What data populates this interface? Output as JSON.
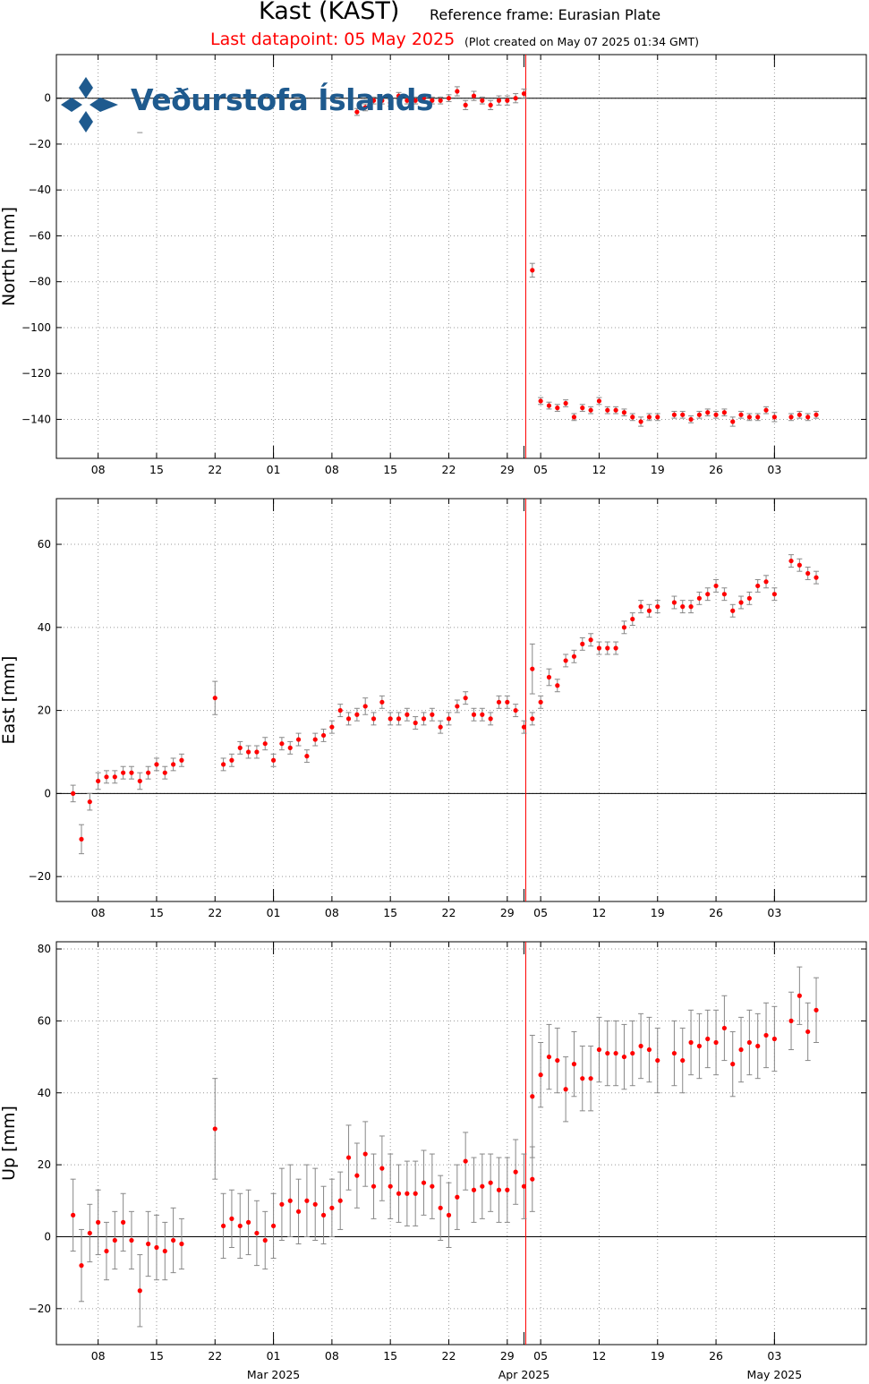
{
  "header": {
    "station": "Kast (KAST)",
    "reference_frame": "Reference frame: Eurasian Plate",
    "last_datapoint": "Last datapoint: 05 May 2025",
    "plot_created": "(Plot created on May 07 2025 01:34 GMT)"
  },
  "logo": {
    "text": "Veðurstofa Íslands",
    "color": "#1e5a8e"
  },
  "colors": {
    "points": "#ff0000",
    "errorbars": "#888888",
    "event_line": "#ff0000",
    "zero_line": "#000000",
    "grid": "#999999"
  },
  "chart_data": [
    {
      "type": "scatter",
      "ylabel": "North [mm]",
      "ylim": [
        -157,
        19
      ],
      "yticks": [
        0,
        -20,
        -40,
        -60,
        -80,
        -100,
        -120,
        -140
      ],
      "xlim": [
        1,
        98
      ],
      "xticks": [
        {
          "day": 6,
          "label": "08"
        },
        {
          "day": 13,
          "label": "15"
        },
        {
          "day": 20,
          "label": "22"
        },
        {
          "day": 27,
          "label": "01"
        },
        {
          "day": 34,
          "label": "08"
        },
        {
          "day": 41,
          "label": "15"
        },
        {
          "day": 48,
          "label": "22"
        },
        {
          "day": 55,
          "label": "29"
        },
        {
          "day": 59,
          "label": "05"
        },
        {
          "day": 66,
          "label": "12"
        },
        {
          "day": 73,
          "label": "19"
        },
        {
          "day": 80,
          "label": "26"
        },
        {
          "day": 87,
          "label": "03"
        }
      ],
      "month_labels": [],
      "event_day": 57,
      "grid": true,
      "points": [
        [
          11,
          -15,
          0
        ],
        [
          37,
          -6,
          1.5
        ],
        [
          38,
          -4,
          1.5
        ],
        [
          39,
          -1,
          1.5
        ],
        [
          40,
          -1,
          1.5
        ],
        [
          41,
          -2,
          1.5
        ],
        [
          42,
          1,
          1.5
        ],
        [
          43,
          -1,
          1.5
        ],
        [
          44,
          -1,
          1.5
        ],
        [
          45,
          0,
          1.5
        ],
        [
          46,
          -1,
          1.5
        ],
        [
          47,
          -1,
          1.5
        ],
        [
          48,
          0,
          1.5
        ],
        [
          49,
          3,
          2
        ],
        [
          50,
          -3,
          2
        ],
        [
          51,
          1,
          2
        ],
        [
          52,
          -1,
          1.5
        ],
        [
          53,
          -3,
          2
        ],
        [
          54,
          -1,
          2
        ],
        [
          55,
          -1,
          2
        ],
        [
          56,
          0,
          2
        ],
        [
          57,
          2,
          2
        ],
        [
          58,
          -75,
          3
        ],
        [
          59,
          -132,
          1.5
        ],
        [
          60,
          -134,
          1.5
        ],
        [
          61,
          -135,
          1.5
        ],
        [
          62,
          -133,
          1.5
        ],
        [
          63,
          -139,
          1.5
        ],
        [
          64,
          -135,
          1.5
        ],
        [
          65,
          -136,
          1.5
        ],
        [
          66,
          -132,
          1.5
        ],
        [
          67,
          -136,
          1.5
        ],
        [
          68,
          -136,
          1.5
        ],
        [
          69,
          -137,
          1.5
        ],
        [
          70,
          -139,
          1.5
        ],
        [
          71,
          -141,
          2
        ],
        [
          72,
          -139,
          1.5
        ],
        [
          73,
          -139,
          1.5
        ],
        [
          75,
          -138,
          1.5
        ],
        [
          76,
          -138,
          1.5
        ],
        [
          77,
          -140,
          1.5
        ],
        [
          78,
          -138,
          1.5
        ],
        [
          79,
          -137,
          1.5
        ],
        [
          80,
          -138,
          1.5
        ],
        [
          81,
          -137,
          1.5
        ],
        [
          82,
          -141,
          2
        ],
        [
          83,
          -138,
          1.5
        ],
        [
          84,
          -139,
          1.5
        ],
        [
          85,
          -139,
          1.5
        ],
        [
          86,
          -136,
          1.5
        ],
        [
          87,
          -139,
          2
        ],
        [
          89,
          -139,
          1.5
        ],
        [
          90,
          -138,
          1.5
        ],
        [
          91,
          -139,
          1.5
        ],
        [
          92,
          -138,
          1.5
        ]
      ]
    },
    {
      "type": "scatter",
      "ylabel": "East [mm]",
      "ylim": [
        -26,
        71
      ],
      "yticks": [
        60,
        40,
        20,
        0,
        -20
      ],
      "xlim": [
        1,
        98
      ],
      "xticks": [
        {
          "day": 6,
          "label": "08"
        },
        {
          "day": 13,
          "label": "15"
        },
        {
          "day": 20,
          "label": "22"
        },
        {
          "day": 27,
          "label": "01"
        },
        {
          "day": 34,
          "label": "08"
        },
        {
          "day": 41,
          "label": "15"
        },
        {
          "day": 48,
          "label": "22"
        },
        {
          "day": 55,
          "label": "29"
        },
        {
          "day": 59,
          "label": "05"
        },
        {
          "day": 66,
          "label": "12"
        },
        {
          "day": 73,
          "label": "19"
        },
        {
          "day": 80,
          "label": "26"
        },
        {
          "day": 87,
          "label": "03"
        }
      ],
      "month_labels": [],
      "event_day": 57,
      "grid": true,
      "points": [
        [
          3,
          0,
          2
        ],
        [
          4,
          -11,
          3.5
        ],
        [
          5,
          -2,
          2
        ],
        [
          6,
          3,
          2
        ],
        [
          7,
          4,
          1.5
        ],
        [
          8,
          4,
          1.5
        ],
        [
          9,
          5,
          1.5
        ],
        [
          10,
          5,
          1.5
        ],
        [
          11,
          3,
          2
        ],
        [
          12,
          5,
          1.5
        ],
        [
          13,
          7,
          1.5
        ],
        [
          14,
          5,
          1.5
        ],
        [
          15,
          7,
          1.5
        ],
        [
          16,
          8,
          1.5
        ],
        [
          20,
          23,
          4
        ],
        [
          21,
          7,
          1.5
        ],
        [
          22,
          8,
          1.5
        ],
        [
          23,
          11,
          1.5
        ],
        [
          24,
          10,
          1.5
        ],
        [
          25,
          10,
          1.5
        ],
        [
          26,
          12,
          1.5
        ],
        [
          27,
          8,
          1.5
        ],
        [
          28,
          12,
          1.5
        ],
        [
          29,
          11,
          1.5
        ],
        [
          30,
          13,
          1.5
        ],
        [
          31,
          9,
          1.5
        ],
        [
          32,
          13,
          1.5
        ],
        [
          33,
          14,
          1.5
        ],
        [
          34,
          16,
          1.5
        ],
        [
          35,
          20,
          1.5
        ],
        [
          36,
          18,
          1.5
        ],
        [
          37,
          19,
          1.5
        ],
        [
          38,
          21,
          2
        ],
        [
          39,
          18,
          1.5
        ],
        [
          40,
          22,
          1.5
        ],
        [
          41,
          18,
          1.5
        ],
        [
          42,
          18,
          1.5
        ],
        [
          43,
          19,
          1.5
        ],
        [
          44,
          17,
          1.5
        ],
        [
          45,
          18,
          1.5
        ],
        [
          46,
          19,
          1.5
        ],
        [
          47,
          16,
          1.5
        ],
        [
          48,
          18,
          1.5
        ],
        [
          49,
          21,
          1.5
        ],
        [
          50,
          23,
          1.5
        ],
        [
          51,
          19,
          1.5
        ],
        [
          52,
          19,
          1.5
        ],
        [
          53,
          18,
          1.5
        ],
        [
          54,
          22,
          1.5
        ],
        [
          55,
          22,
          1.5
        ],
        [
          56,
          20,
          1.5
        ],
        [
          57,
          16,
          1.5
        ],
        [
          58,
          18,
          1.5
        ],
        [
          58,
          30,
          6
        ],
        [
          59,
          22,
          1.5
        ],
        [
          60,
          28,
          2
        ],
        [
          61,
          26,
          1.5
        ],
        [
          62,
          32,
          1.5
        ],
        [
          63,
          33,
          1.5
        ],
        [
          64,
          36,
          1.5
        ],
        [
          65,
          37,
          1.5
        ],
        [
          66,
          35,
          1.5
        ],
        [
          67,
          35,
          1.5
        ],
        [
          68,
          35,
          1.5
        ],
        [
          69,
          40,
          1.5
        ],
        [
          70,
          42,
          1.5
        ],
        [
          71,
          45,
          1.5
        ],
        [
          72,
          44,
          1.5
        ],
        [
          73,
          45,
          1.5
        ],
        [
          75,
          46,
          1.5
        ],
        [
          76,
          45,
          1.5
        ],
        [
          77,
          45,
          1.5
        ],
        [
          78,
          47,
          1.5
        ],
        [
          79,
          48,
          1.5
        ],
        [
          80,
          50,
          1.5
        ],
        [
          81,
          48,
          1.5
        ],
        [
          82,
          44,
          1.5
        ],
        [
          83,
          46,
          1.5
        ],
        [
          84,
          47,
          1.5
        ],
        [
          85,
          50,
          1.5
        ],
        [
          86,
          51,
          1.5
        ],
        [
          87,
          48,
          1.5
        ],
        [
          89,
          56,
          1.5
        ],
        [
          90,
          55,
          1.5
        ],
        [
          91,
          53,
          1.5
        ],
        [
          92,
          52,
          1.5
        ]
      ]
    },
    {
      "type": "scatter",
      "ylabel": "Up [mm]",
      "ylim": [
        -30,
        82
      ],
      "yticks": [
        80,
        60,
        40,
        20,
        0,
        -20
      ],
      "xlim": [
        1,
        98
      ],
      "xticks": [
        {
          "day": 6,
          "label": "08"
        },
        {
          "day": 13,
          "label": "15"
        },
        {
          "day": 20,
          "label": "22"
        },
        {
          "day": 27,
          "label": "01"
        },
        {
          "day": 34,
          "label": "08"
        },
        {
          "day": 41,
          "label": "15"
        },
        {
          "day": 48,
          "label": "22"
        },
        {
          "day": 55,
          "label": "29"
        },
        {
          "day": 59,
          "label": "05"
        },
        {
          "day": 66,
          "label": "12"
        },
        {
          "day": 73,
          "label": "19"
        },
        {
          "day": 80,
          "label": "26"
        },
        {
          "day": 87,
          "label": "03"
        }
      ],
      "month_labels": [
        {
          "day": 27,
          "label": "Mar 2025"
        },
        {
          "day": 57,
          "label": "Apr 2025"
        },
        {
          "day": 87,
          "label": "May 2025"
        }
      ],
      "event_day": 57,
      "grid": true,
      "points": [
        [
          3,
          6,
          10
        ],
        [
          4,
          -8,
          10
        ],
        [
          5,
          1,
          8
        ],
        [
          6,
          4,
          9
        ],
        [
          7,
          -4,
          8
        ],
        [
          8,
          -1,
          8
        ],
        [
          9,
          4,
          8
        ],
        [
          10,
          -1,
          8
        ],
        [
          11,
          -15,
          10
        ],
        [
          12,
          -2,
          9
        ],
        [
          13,
          -3,
          9
        ],
        [
          14,
          -4,
          8
        ],
        [
          15,
          -1,
          9
        ],
        [
          16,
          -2,
          7
        ],
        [
          20,
          30,
          14
        ],
        [
          21,
          3,
          9
        ],
        [
          22,
          5,
          8
        ],
        [
          23,
          3,
          9
        ],
        [
          24,
          4,
          9
        ],
        [
          25,
          1,
          9
        ],
        [
          26,
          -1,
          8
        ],
        [
          27,
          3,
          9
        ],
        [
          28,
          9,
          10
        ],
        [
          29,
          10,
          10
        ],
        [
          30,
          7,
          9
        ],
        [
          31,
          10,
          10
        ],
        [
          32,
          9,
          10
        ],
        [
          33,
          6,
          8
        ],
        [
          34,
          8,
          8
        ],
        [
          35,
          10,
          8
        ],
        [
          36,
          22,
          9
        ],
        [
          37,
          17,
          9
        ],
        [
          38,
          23,
          9
        ],
        [
          39,
          14,
          9
        ],
        [
          40,
          19,
          9
        ],
        [
          41,
          14,
          9
        ],
        [
          42,
          12,
          8
        ],
        [
          43,
          12,
          9
        ],
        [
          44,
          12,
          9
        ],
        [
          45,
          15,
          9
        ],
        [
          46,
          14,
          9
        ],
        [
          47,
          8,
          9
        ],
        [
          48,
          6,
          9
        ],
        [
          49,
          11,
          9
        ],
        [
          50,
          21,
          8
        ],
        [
          51,
          13,
          9
        ],
        [
          52,
          14,
          9
        ],
        [
          53,
          15,
          8
        ],
        [
          54,
          13,
          9
        ],
        [
          55,
          13,
          9
        ],
        [
          56,
          18,
          9
        ],
        [
          57,
          14,
          9
        ],
        [
          58,
          16,
          9
        ],
        [
          58,
          39,
          17
        ],
        [
          59,
          45,
          9
        ],
        [
          60,
          50,
          9
        ],
        [
          61,
          49,
          9
        ],
        [
          62,
          41,
          9
        ],
        [
          63,
          48,
          9
        ],
        [
          64,
          44,
          9
        ],
        [
          65,
          44,
          9
        ],
        [
          66,
          52,
          9
        ],
        [
          67,
          51,
          9
        ],
        [
          68,
          51,
          9
        ],
        [
          69,
          50,
          9
        ],
        [
          70,
          51,
          9
        ],
        [
          71,
          53,
          9
        ],
        [
          72,
          52,
          9
        ],
        [
          73,
          49,
          9
        ],
        [
          75,
          51,
          9
        ],
        [
          76,
          49,
          9
        ],
        [
          77,
          54,
          9
        ],
        [
          78,
          53,
          9
        ],
        [
          79,
          55,
          8
        ],
        [
          80,
          54,
          9
        ],
        [
          81,
          58,
          9
        ],
        [
          82,
          48,
          9
        ],
        [
          83,
          52,
          9
        ],
        [
          84,
          54,
          9
        ],
        [
          85,
          53,
          9
        ],
        [
          86,
          56,
          9
        ],
        [
          87,
          55,
          9
        ],
        [
          89,
          60,
          8
        ],
        [
          90,
          67,
          8
        ],
        [
          91,
          57,
          8
        ],
        [
          92,
          63,
          9
        ]
      ]
    }
  ]
}
